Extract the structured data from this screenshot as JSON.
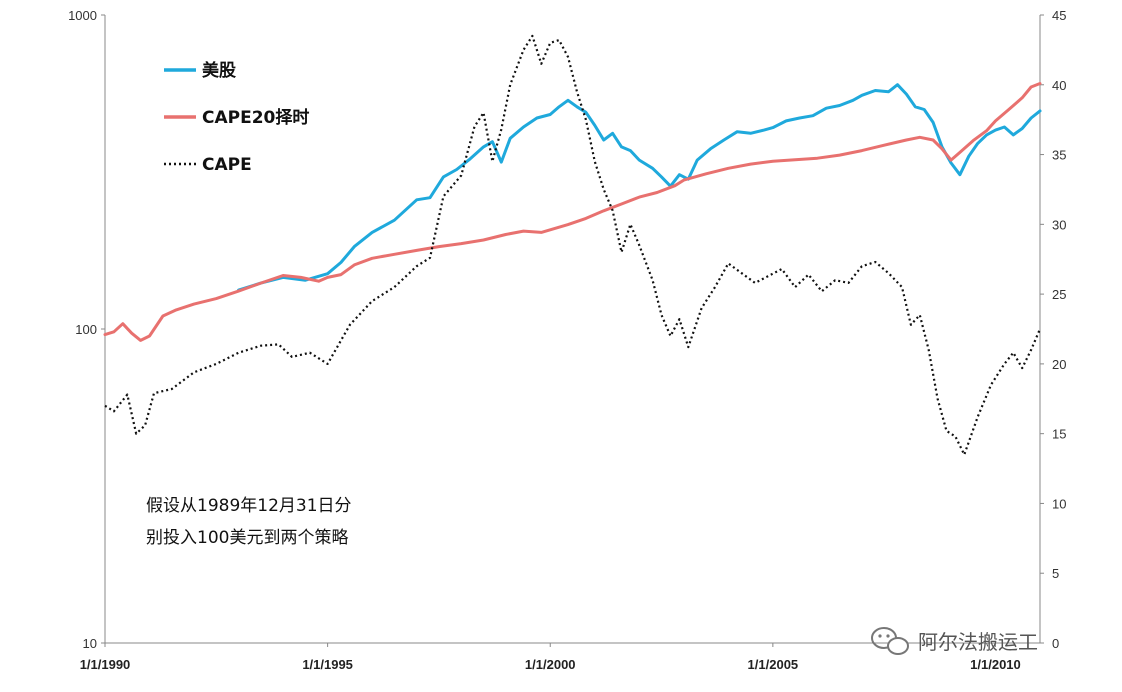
{
  "chart_data": {
    "type": "line",
    "title": "",
    "left_axis": {
      "scale": "log",
      "min": 10,
      "max": 1000,
      "ticks": [
        10,
        100,
        1000
      ],
      "tick_labels": [
        "10",
        "100",
        "1000"
      ]
    },
    "right_axis": {
      "scale": "linear",
      "min": 0,
      "max": 45,
      "ticks": [
        0,
        5,
        10,
        15,
        20,
        25,
        30,
        35,
        40,
        45
      ],
      "tick_labels": [
        "0",
        "5",
        "10",
        "15",
        "20",
        "25",
        "30",
        "35",
        "40",
        "45"
      ]
    },
    "x_axis": {
      "min": 1990.0,
      "max": 2011.0,
      "ticks": [
        1990,
        1995,
        2000,
        2005,
        2010
      ],
      "tick_labels": [
        "1/1/1990",
        "1/1/1995",
        "1/1/2000",
        "1/1/2005",
        "1/1/2010"
      ]
    },
    "grid": false,
    "legend": {
      "position": "top-left"
    },
    "series": [
      {
        "name": "美股",
        "axis": "left",
        "color": "#1fa9dc",
        "style": "solid",
        "points": [
          [
            1993.0,
            133
          ],
          [
            1993.5,
            140
          ],
          [
            1994.0,
            146
          ],
          [
            1994.5,
            143
          ],
          [
            1995.0,
            150
          ],
          [
            1995.3,
            163
          ],
          [
            1995.6,
            183
          ],
          [
            1996.0,
            203
          ],
          [
            1996.5,
            222
          ],
          [
            1997.0,
            258
          ],
          [
            1997.3,
            262
          ],
          [
            1997.6,
            305
          ],
          [
            1997.9,
            322
          ],
          [
            1998.2,
            348
          ],
          [
            1998.5,
            380
          ],
          [
            1998.7,
            395
          ],
          [
            1998.9,
            340
          ],
          [
            1999.1,
            405
          ],
          [
            1999.4,
            440
          ],
          [
            1999.7,
            470
          ],
          [
            2000.0,
            482
          ],
          [
            2000.2,
            510
          ],
          [
            2000.4,
            535
          ],
          [
            2000.6,
            510
          ],
          [
            2000.8,
            490
          ],
          [
            2001.0,
            445
          ],
          [
            2001.2,
            400
          ],
          [
            2001.4,
            420
          ],
          [
            2001.6,
            380
          ],
          [
            2001.8,
            370
          ],
          [
            2002.0,
            345
          ],
          [
            2002.3,
            325
          ],
          [
            2002.5,
            305
          ],
          [
            2002.7,
            285
          ],
          [
            2002.9,
            310
          ],
          [
            2003.1,
            300
          ],
          [
            2003.3,
            345
          ],
          [
            2003.6,
            375
          ],
          [
            2003.9,
            400
          ],
          [
            2004.2,
            425
          ],
          [
            2004.5,
            420
          ],
          [
            2004.8,
            430
          ],
          [
            2005.0,
            438
          ],
          [
            2005.3,
            460
          ],
          [
            2005.6,
            470
          ],
          [
            2005.9,
            478
          ],
          [
            2006.2,
            505
          ],
          [
            2006.5,
            515
          ],
          [
            2006.8,
            535
          ],
          [
            2007.0,
            555
          ],
          [
            2007.3,
            575
          ],
          [
            2007.6,
            570
          ],
          [
            2007.8,
            600
          ],
          [
            2008.0,
            560
          ],
          [
            2008.2,
            510
          ],
          [
            2008.4,
            500
          ],
          [
            2008.6,
            455
          ],
          [
            2008.8,
            380
          ],
          [
            2009.0,
            338
          ],
          [
            2009.2,
            310
          ],
          [
            2009.4,
            355
          ],
          [
            2009.6,
            390
          ],
          [
            2009.8,
            415
          ],
          [
            2010.0,
            430
          ],
          [
            2010.2,
            440
          ],
          [
            2010.4,
            415
          ],
          [
            2010.6,
            435
          ],
          [
            2010.8,
            470
          ],
          [
            2011.0,
            495
          ]
        ]
      },
      {
        "name": "CAPE20择时",
        "axis": "left",
        "color": "#e8716f",
        "style": "solid",
        "points": [
          [
            1990.0,
            96
          ],
          [
            1990.2,
            98
          ],
          [
            1990.4,
            104
          ],
          [
            1990.6,
            97
          ],
          [
            1990.8,
            92
          ],
          [
            1991.0,
            95
          ],
          [
            1991.3,
            110
          ],
          [
            1991.6,
            115
          ],
          [
            1992.0,
            120
          ],
          [
            1992.5,
            125
          ],
          [
            1993.0,
            132
          ],
          [
            1993.5,
            140
          ],
          [
            1994.0,
            148
          ],
          [
            1994.4,
            146
          ],
          [
            1994.8,
            142
          ],
          [
            1995.0,
            146
          ],
          [
            1995.3,
            149
          ],
          [
            1995.6,
            160
          ],
          [
            1996.0,
            168
          ],
          [
            1996.5,
            173
          ],
          [
            1997.0,
            178
          ],
          [
            1997.5,
            183
          ],
          [
            1998.0,
            187
          ],
          [
            1998.5,
            192
          ],
          [
            1999.0,
            200
          ],
          [
            1999.4,
            205
          ],
          [
            1999.8,
            203
          ],
          [
            2000.0,
            207
          ],
          [
            2000.4,
            215
          ],
          [
            2000.8,
            225
          ],
          [
            2001.2,
            238
          ],
          [
            2001.6,
            250
          ],
          [
            2002.0,
            263
          ],
          [
            2002.4,
            272
          ],
          [
            2002.8,
            286
          ],
          [
            2003.0,
            298
          ],
          [
            2003.5,
            312
          ],
          [
            2004.0,
            325
          ],
          [
            2004.5,
            335
          ],
          [
            2005.0,
            342
          ],
          [
            2005.5,
            346
          ],
          [
            2006.0,
            350
          ],
          [
            2006.5,
            358
          ],
          [
            2007.0,
            370
          ],
          [
            2007.5,
            385
          ],
          [
            2008.0,
            400
          ],
          [
            2008.3,
            408
          ],
          [
            2008.6,
            400
          ],
          [
            2008.8,
            375
          ],
          [
            2009.0,
            345
          ],
          [
            2009.2,
            365
          ],
          [
            2009.5,
            398
          ],
          [
            2009.8,
            428
          ],
          [
            2010.0,
            460
          ],
          [
            2010.3,
            500
          ],
          [
            2010.6,
            545
          ],
          [
            2010.8,
            590
          ],
          [
            2011.0,
            605
          ]
        ]
      },
      {
        "name": "CAPE",
        "axis": "right",
        "color": "#111111",
        "style": "dotted",
        "points": [
          [
            1990.0,
            17.0
          ],
          [
            1990.2,
            16.6
          ],
          [
            1990.5,
            17.8
          ],
          [
            1990.7,
            15.0
          ],
          [
            1990.9,
            15.6
          ],
          [
            1991.1,
            17.9
          ],
          [
            1991.5,
            18.2
          ],
          [
            1992.0,
            19.4
          ],
          [
            1992.5,
            20.0
          ],
          [
            1993.0,
            20.8
          ],
          [
            1993.5,
            21.3
          ],
          [
            1993.9,
            21.4
          ],
          [
            1994.2,
            20.5
          ],
          [
            1994.6,
            20.8
          ],
          [
            1995.0,
            20.0
          ],
          [
            1995.5,
            22.8
          ],
          [
            1996.0,
            24.5
          ],
          [
            1996.5,
            25.5
          ],
          [
            1997.0,
            27.0
          ],
          [
            1997.3,
            27.6
          ],
          [
            1997.6,
            32.0
          ],
          [
            1998.0,
            33.5
          ],
          [
            1998.3,
            37.0
          ],
          [
            1998.5,
            38.0
          ],
          [
            1998.7,
            34.5
          ],
          [
            1998.9,
            36.8
          ],
          [
            1999.1,
            40.0
          ],
          [
            1999.4,
            42.5
          ],
          [
            1999.6,
            43.5
          ],
          [
            1999.8,
            41.5
          ],
          [
            2000.0,
            43.0
          ],
          [
            2000.2,
            43.2
          ],
          [
            2000.4,
            42.0
          ],
          [
            2000.6,
            39.5
          ],
          [
            2000.8,
            37.5
          ],
          [
            2001.0,
            34.5
          ],
          [
            2001.2,
            32.5
          ],
          [
            2001.4,
            31.0
          ],
          [
            2001.6,
            28.0
          ],
          [
            2001.8,
            30.0
          ],
          [
            2002.0,
            28.5
          ],
          [
            2002.3,
            26.0
          ],
          [
            2002.5,
            23.5
          ],
          [
            2002.7,
            22.0
          ],
          [
            2002.9,
            23.2
          ],
          [
            2003.1,
            21.2
          ],
          [
            2003.4,
            24.0
          ],
          [
            2003.7,
            25.5
          ],
          [
            2004.0,
            27.2
          ],
          [
            2004.3,
            26.5
          ],
          [
            2004.6,
            25.8
          ],
          [
            2004.9,
            26.3
          ],
          [
            2005.2,
            26.8
          ],
          [
            2005.5,
            25.5
          ],
          [
            2005.8,
            26.4
          ],
          [
            2006.1,
            25.2
          ],
          [
            2006.4,
            26.0
          ],
          [
            2006.7,
            25.8
          ],
          [
            2007.0,
            27.0
          ],
          [
            2007.3,
            27.3
          ],
          [
            2007.6,
            26.5
          ],
          [
            2007.9,
            25.5
          ],
          [
            2008.1,
            22.8
          ],
          [
            2008.3,
            23.5
          ],
          [
            2008.5,
            21.0
          ],
          [
            2008.7,
            17.5
          ],
          [
            2008.9,
            15.2
          ],
          [
            2009.1,
            14.8
          ],
          [
            2009.3,
            13.5
          ],
          [
            2009.6,
            16.2
          ],
          [
            2009.9,
            18.5
          ],
          [
            2010.2,
            20.0
          ],
          [
            2010.4,
            20.8
          ],
          [
            2010.6,
            19.7
          ],
          [
            2010.8,
            21.0
          ],
          [
            2011.0,
            22.5
          ]
        ]
      }
    ]
  },
  "legend_items": [
    {
      "label": "美股",
      "color": "#1fa9dc",
      "style": "solid"
    },
    {
      "label": "CAPE20择时",
      "color": "#e8716f",
      "style": "solid"
    },
    {
      "label": "CAPE",
      "color": "#111111",
      "style": "dotted"
    }
  ],
  "annotation": {
    "line1": "假设从1989年12月31日分",
    "line2": "别投入100美元到两个策略"
  },
  "watermark": {
    "text": "阿尔法搬运工",
    "icon": "wechat-icon"
  }
}
